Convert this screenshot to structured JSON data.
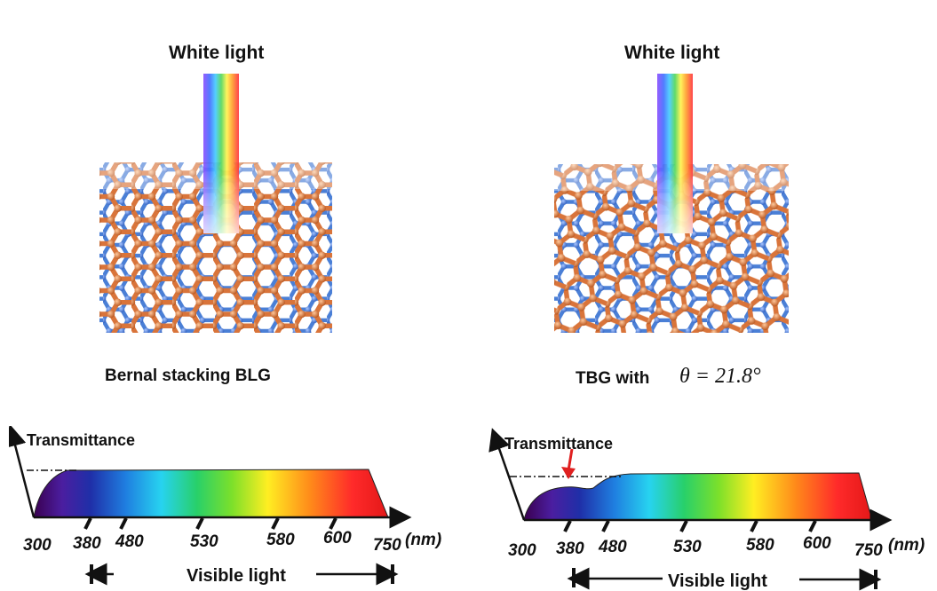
{
  "left": {
    "beam_label": "White light",
    "caption": "Bernal stacking BLG",
    "axis_title": "Transmittance",
    "ticks": [
      "300",
      "380",
      "480",
      "530",
      "580",
      "600",
      "750"
    ],
    "unit": "(nm)",
    "visible_label": "Visible light"
  },
  "right": {
    "beam_label": "White light",
    "caption": "TBG with",
    "angle": "θ = 21.8°",
    "axis_title": "Transmittance",
    "ticks": [
      "300",
      "380",
      "480",
      "530",
      "580",
      "600",
      "750"
    ],
    "unit": "(nm)",
    "visible_label": "Visible light"
  },
  "colors": {
    "carbon_top": "#4a7fd6",
    "carbon_bottom": "#d9743a",
    "marker_arrow": "#e02020"
  },
  "icons": [
    "rainbow-beam",
    "graphene-lattice",
    "transmittance-spectrum",
    "red-down-arrow"
  ]
}
